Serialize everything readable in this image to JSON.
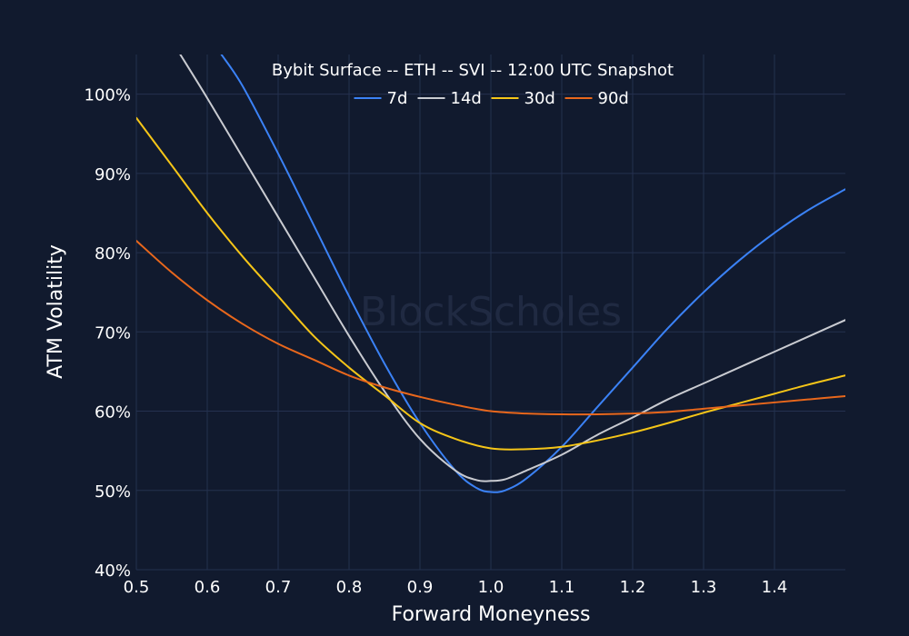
{
  "chart_data": {
    "type": "line",
    "title": "Bybit Surface -- ETH -- SVI -- 12:00 UTC Snapshot",
    "xlabel": "Forward Moneyness",
    "ylabel": "ATM Volatility",
    "watermark": "BlockScholes",
    "xlim": [
      0.5,
      1.5
    ],
    "ylim": [
      40,
      105
    ],
    "x_ticks": [
      0.5,
      0.6,
      0.7,
      0.8,
      0.9,
      1.0,
      1.1,
      1.2,
      1.3,
      1.4
    ],
    "x_tick_labels": [
      "0.5",
      "0.6",
      "0.7",
      "0.8",
      "0.9",
      "1.0",
      "1.1",
      "1.2",
      "1.3",
      "1.4"
    ],
    "y_ticks": [
      40,
      50,
      60,
      70,
      80,
      90,
      100
    ],
    "y_tick_labels": [
      "40%",
      "50%",
      "60%",
      "70%",
      "80%",
      "90%",
      "100%"
    ],
    "grid": true,
    "legend_position": "top-center",
    "background": "#111a2e",
    "grid_color": "#24314f",
    "series": [
      {
        "name": "7d",
        "color": "#3b82f6",
        "x": [
          0.62,
          0.65,
          0.7,
          0.75,
          0.8,
          0.85,
          0.9,
          0.95,
          0.98,
          1.0,
          1.02,
          1.05,
          1.1,
          1.15,
          1.2,
          1.25,
          1.3,
          1.35,
          1.4,
          1.45,
          1.5
        ],
        "y": [
          105,
          101,
          92.5,
          83.5,
          74.5,
          66,
          58.5,
          52.5,
          50.3,
          49.8,
          50.0,
          51.5,
          55.5,
          60.5,
          65.5,
          70.5,
          75.0,
          79.0,
          82.5,
          85.5,
          88.0
        ]
      },
      {
        "name": "14d",
        "color": "#c9cbd1",
        "x": [
          0.562,
          0.6,
          0.65,
          0.7,
          0.75,
          0.8,
          0.85,
          0.9,
          0.95,
          0.98,
          1.0,
          1.02,
          1.05,
          1.1,
          1.15,
          1.2,
          1.25,
          1.3,
          1.35,
          1.4,
          1.45,
          1.5
        ],
        "y": [
          105,
          99.5,
          92,
          84.5,
          77,
          69.5,
          62.5,
          56.5,
          52.5,
          51.3,
          51.2,
          51.4,
          52.5,
          54.5,
          57,
          59.2,
          61.5,
          63.5,
          65.5,
          67.5,
          69.5,
          71.5
        ]
      },
      {
        "name": "30d",
        "color": "#f5c518",
        "x": [
          0.5,
          0.55,
          0.6,
          0.65,
          0.7,
          0.75,
          0.8,
          0.85,
          0.9,
          0.95,
          1.0,
          1.05,
          1.1,
          1.15,
          1.2,
          1.25,
          1.3,
          1.35,
          1.4,
          1.45,
          1.5
        ],
        "y": [
          97,
          91,
          85,
          79.5,
          74.5,
          69.5,
          65.5,
          62,
          58.5,
          56.5,
          55.3,
          55.2,
          55.5,
          56.3,
          57.3,
          58.5,
          59.8,
          61.0,
          62.2,
          63.4,
          64.5
        ]
      },
      {
        "name": "90d",
        "color": "#e8671c",
        "x": [
          0.5,
          0.55,
          0.6,
          0.65,
          0.7,
          0.75,
          0.8,
          0.85,
          0.9,
          0.95,
          1.0,
          1.05,
          1.1,
          1.15,
          1.2,
          1.25,
          1.3,
          1.35,
          1.4,
          1.45,
          1.5
        ],
        "y": [
          81.5,
          77.5,
          74,
          71,
          68.5,
          66.5,
          64.5,
          63,
          61.8,
          60.8,
          60.0,
          59.7,
          59.6,
          59.6,
          59.7,
          59.9,
          60.3,
          60.7,
          61.1,
          61.5,
          61.9
        ]
      }
    ]
  }
}
